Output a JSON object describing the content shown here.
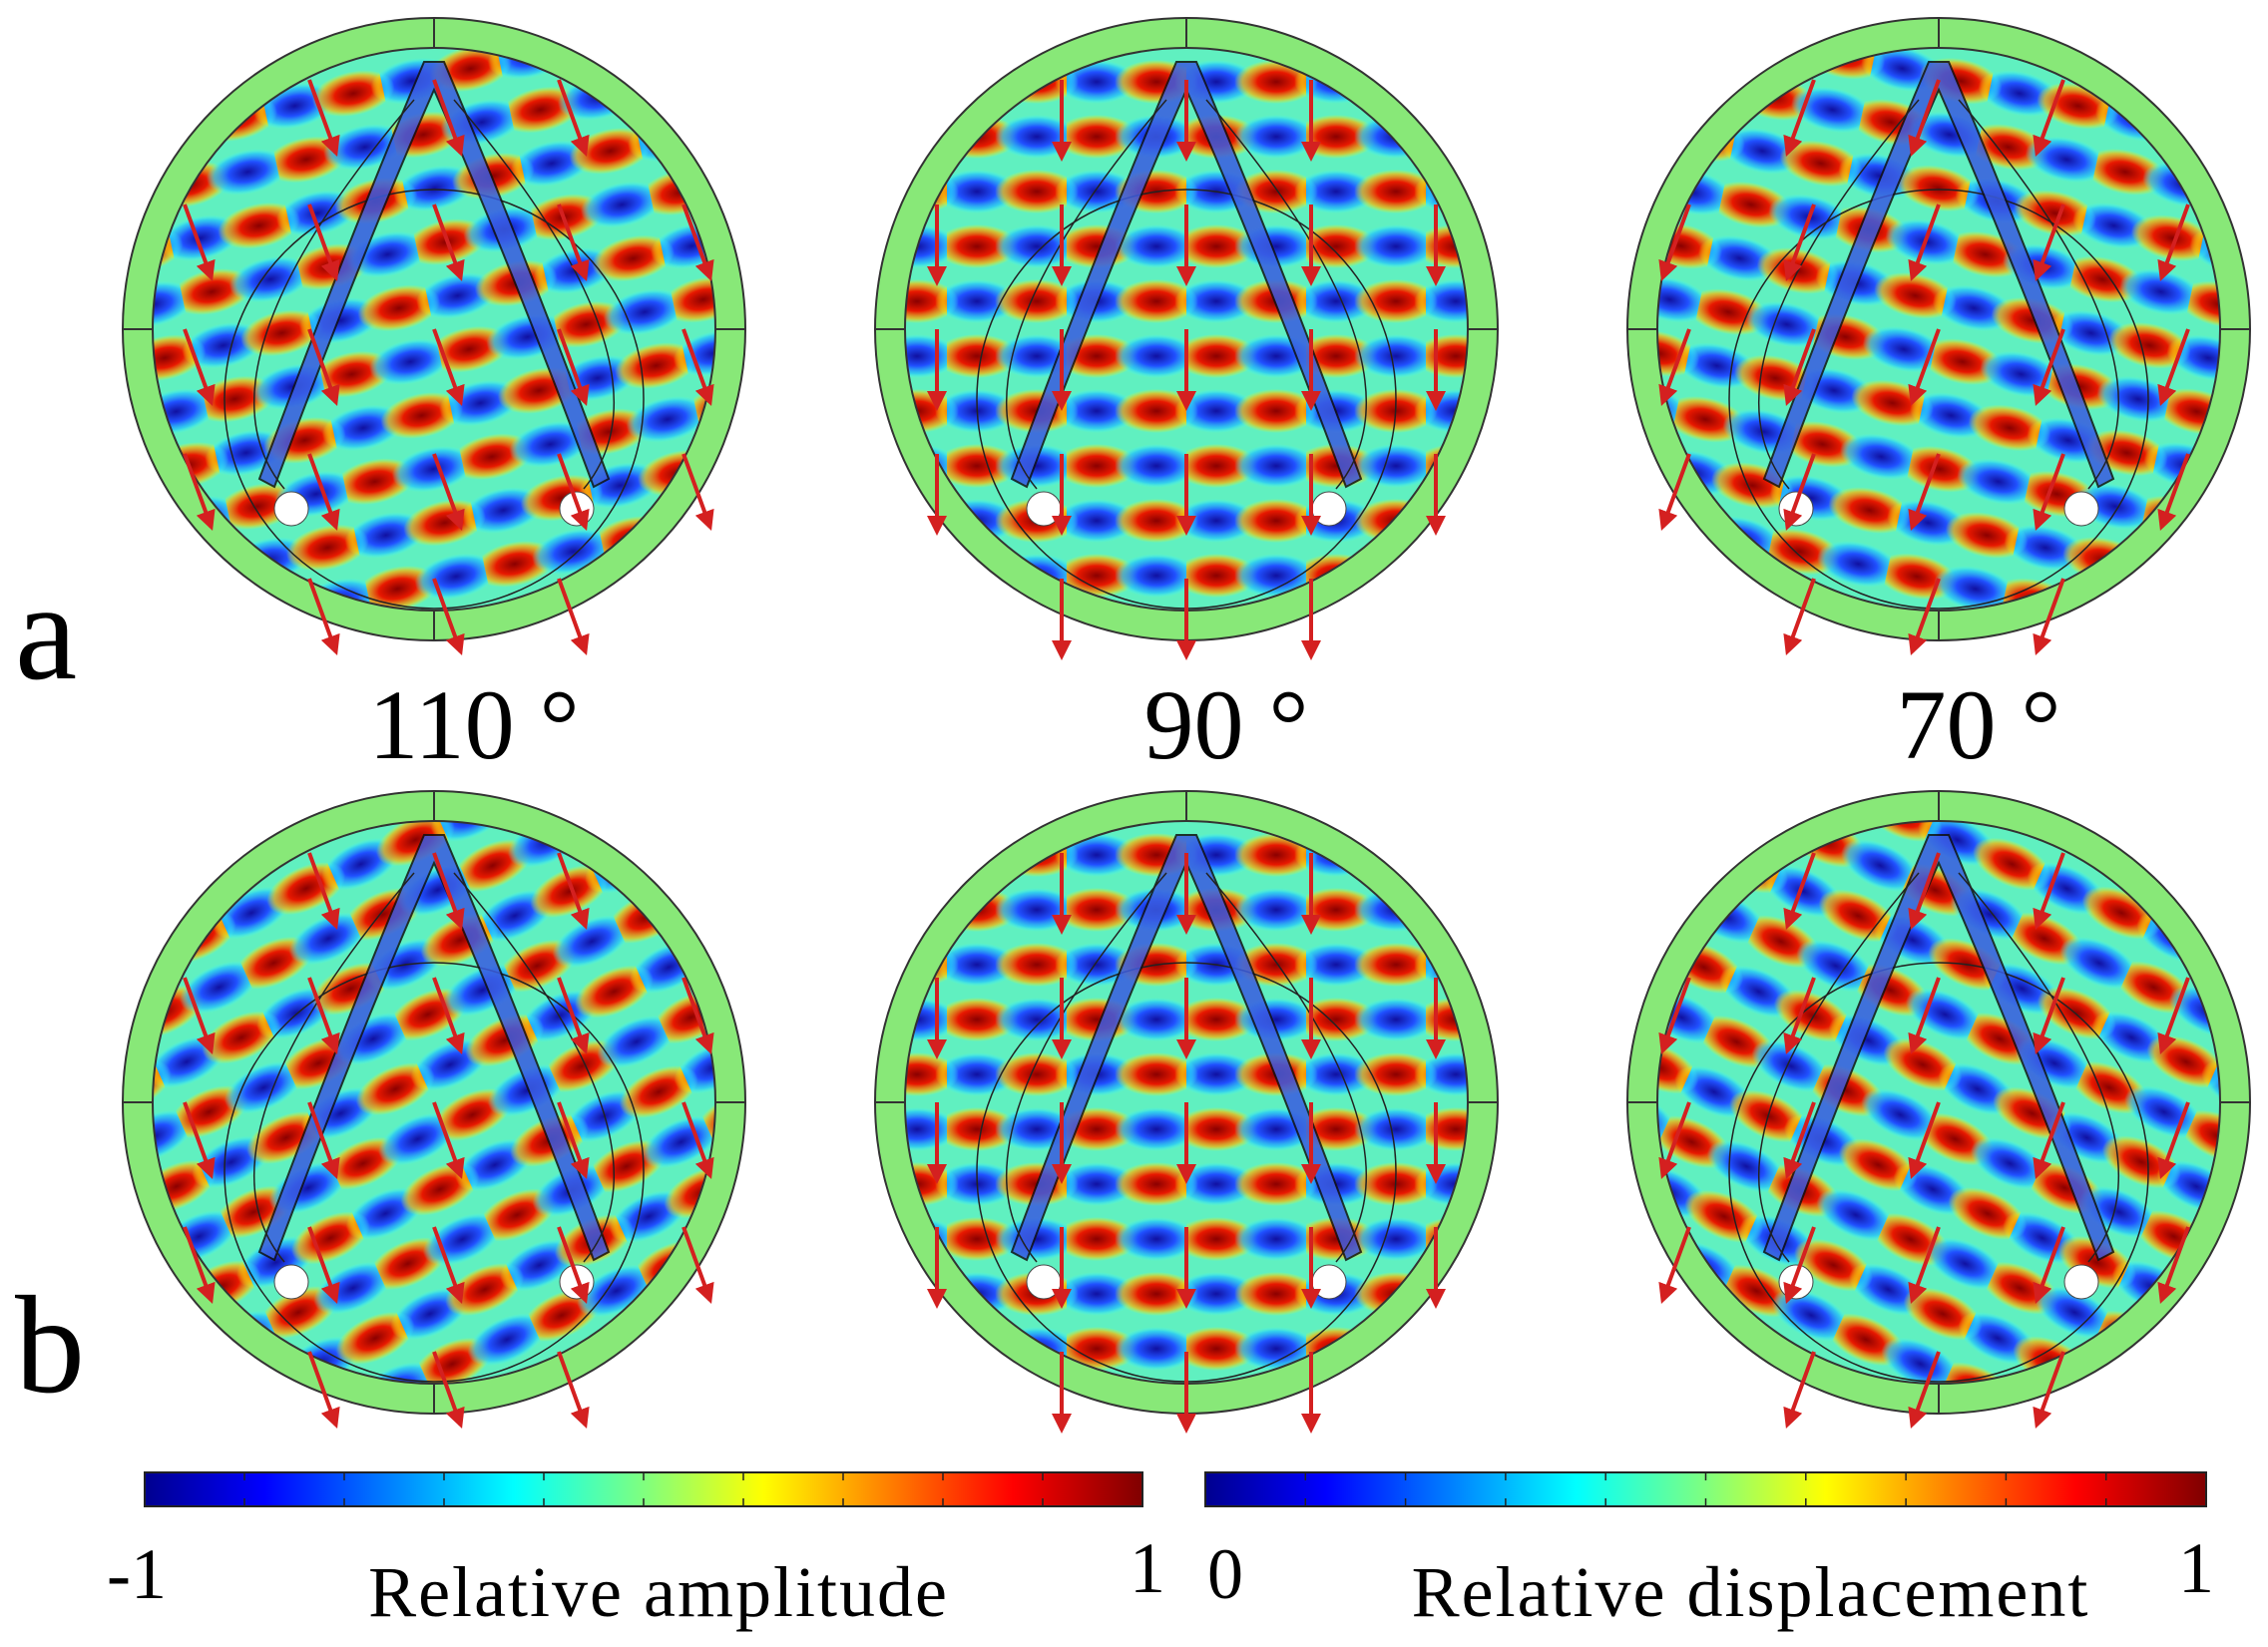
{
  "panels": {
    "row_labels": [
      "a",
      "b"
    ],
    "angles": [
      "110 °",
      "90 °",
      "70 °"
    ]
  },
  "colorbars": [
    {
      "min_label": "-1",
      "max_label": "1",
      "title": "Relative amplitude"
    },
    {
      "min_label": "0",
      "max_label": "1",
      "title": "Relative displacement"
    }
  ]
}
